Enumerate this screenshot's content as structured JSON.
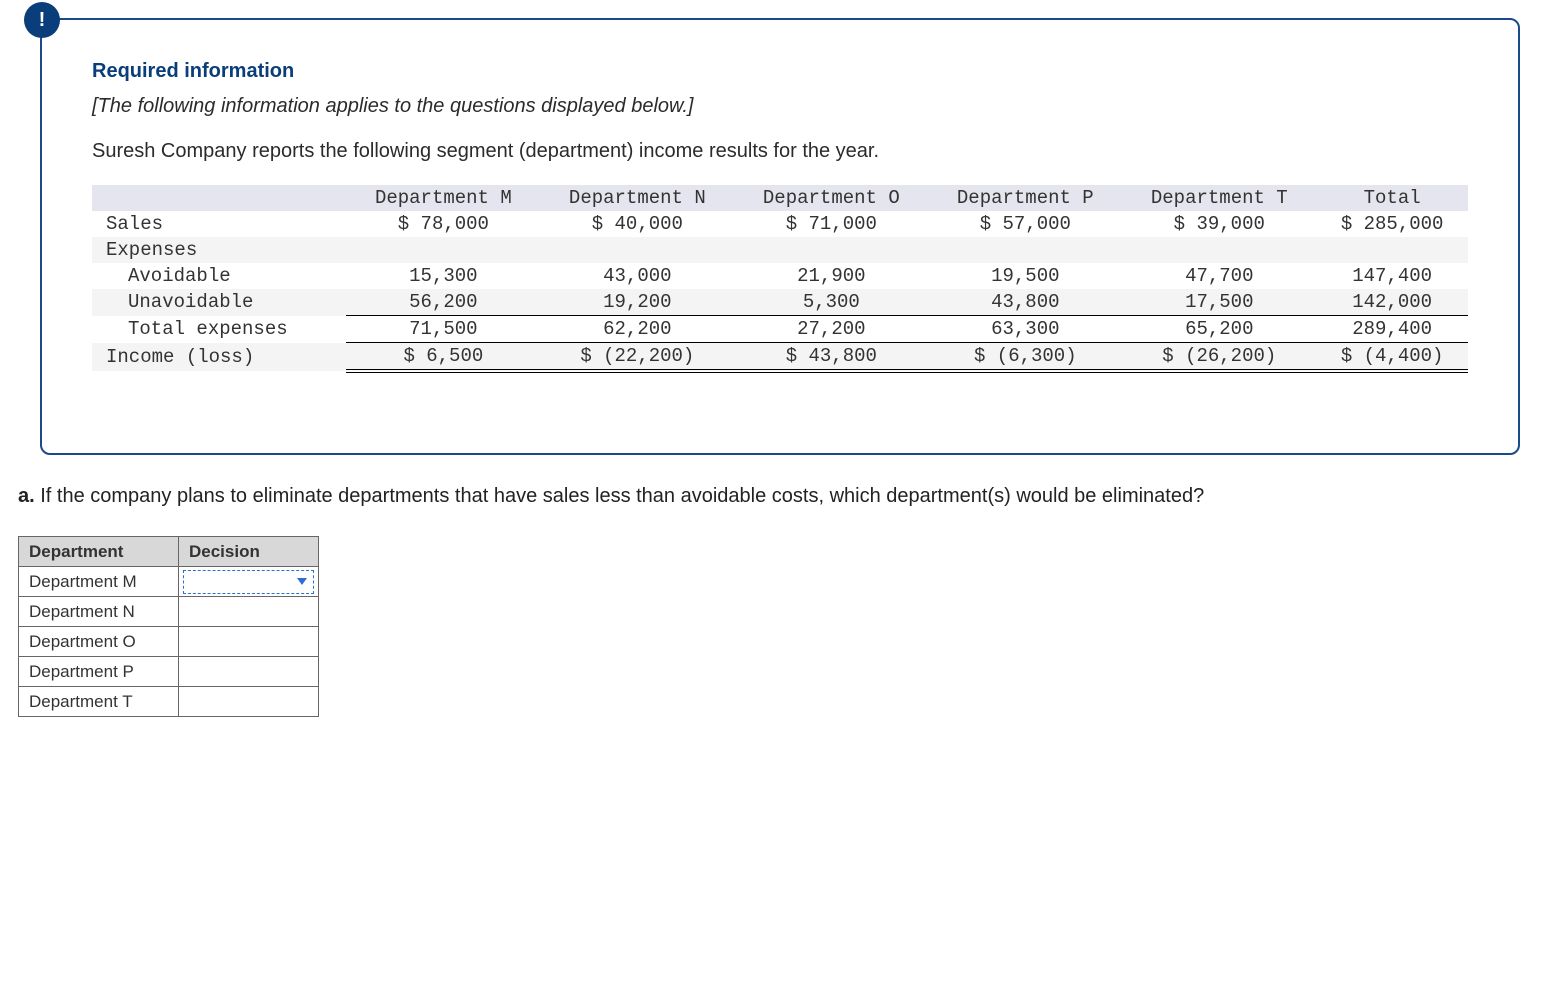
{
  "info_badge": "!",
  "section_title": "Required information",
  "subtitle": "[The following information applies to the questions displayed below.]",
  "intro": "Suresh Company reports the following segment (department) income results for the year.",
  "data_table": {
    "columns": [
      "",
      "Department M",
      "Department N",
      "Department O",
      "Department P",
      "Department T",
      "Total"
    ],
    "rows": [
      {
        "label": "Sales",
        "indent": 0,
        "shade": false,
        "cells": [
          "$ 78,000",
          "$ 40,000",
          "$ 71,000",
          "$ 57,000",
          "$ 39,000",
          "$ 285,000"
        ],
        "single_top": false,
        "double_bottom": false
      },
      {
        "label": "Expenses",
        "indent": 0,
        "shade": true,
        "cells": [
          "",
          "",
          "",
          "",
          "",
          ""
        ],
        "single_top": false,
        "double_bottom": false
      },
      {
        "label": "Avoidable",
        "indent": 1,
        "shade": false,
        "cells": [
          "15,300",
          "43,000",
          "21,900",
          "19,500",
          "47,700",
          "147,400"
        ],
        "single_top": false,
        "double_bottom": false
      },
      {
        "label": "Unavoidable",
        "indent": 1,
        "shade": true,
        "cells": [
          "56,200",
          "19,200",
          "5,300",
          "43,800",
          "17,500",
          "142,000"
        ],
        "single_top": false,
        "double_bottom": false
      },
      {
        "label": "Total expenses",
        "indent": 1,
        "shade": false,
        "cells": [
          "71,500",
          "62,200",
          "27,200",
          "63,300",
          "65,200",
          "289,400"
        ],
        "single_top": true,
        "double_bottom": false
      },
      {
        "label": "Income (loss)",
        "indent": 0,
        "shade": true,
        "cells": [
          "$ 6,500",
          "$ (22,200)",
          "$ 43,800",
          "$ (6,300)",
          "$ (26,200)",
          "$ (4,400)"
        ],
        "single_top": true,
        "double_bottom": true
      }
    ]
  },
  "question_prefix": "a.",
  "question_text": " If the company plans to eliminate departments that have sales less than avoidable costs, which department(s) would be eliminated?",
  "answer_table": {
    "headers": [
      "Department",
      "Decision"
    ],
    "rows": [
      "Department M",
      "Department N",
      "Department O",
      "Department P",
      "Department T"
    ],
    "active_dropdown_index": 0
  },
  "colors": {
    "card_border": "#1a4a8a",
    "badge_bg": "#0a3e7a",
    "header_shade": "#e5e5ef",
    "row_shade": "#f4f4f4",
    "answer_header_bg": "#d8d8d8",
    "dropdown_border": "#2a6ed6"
  }
}
